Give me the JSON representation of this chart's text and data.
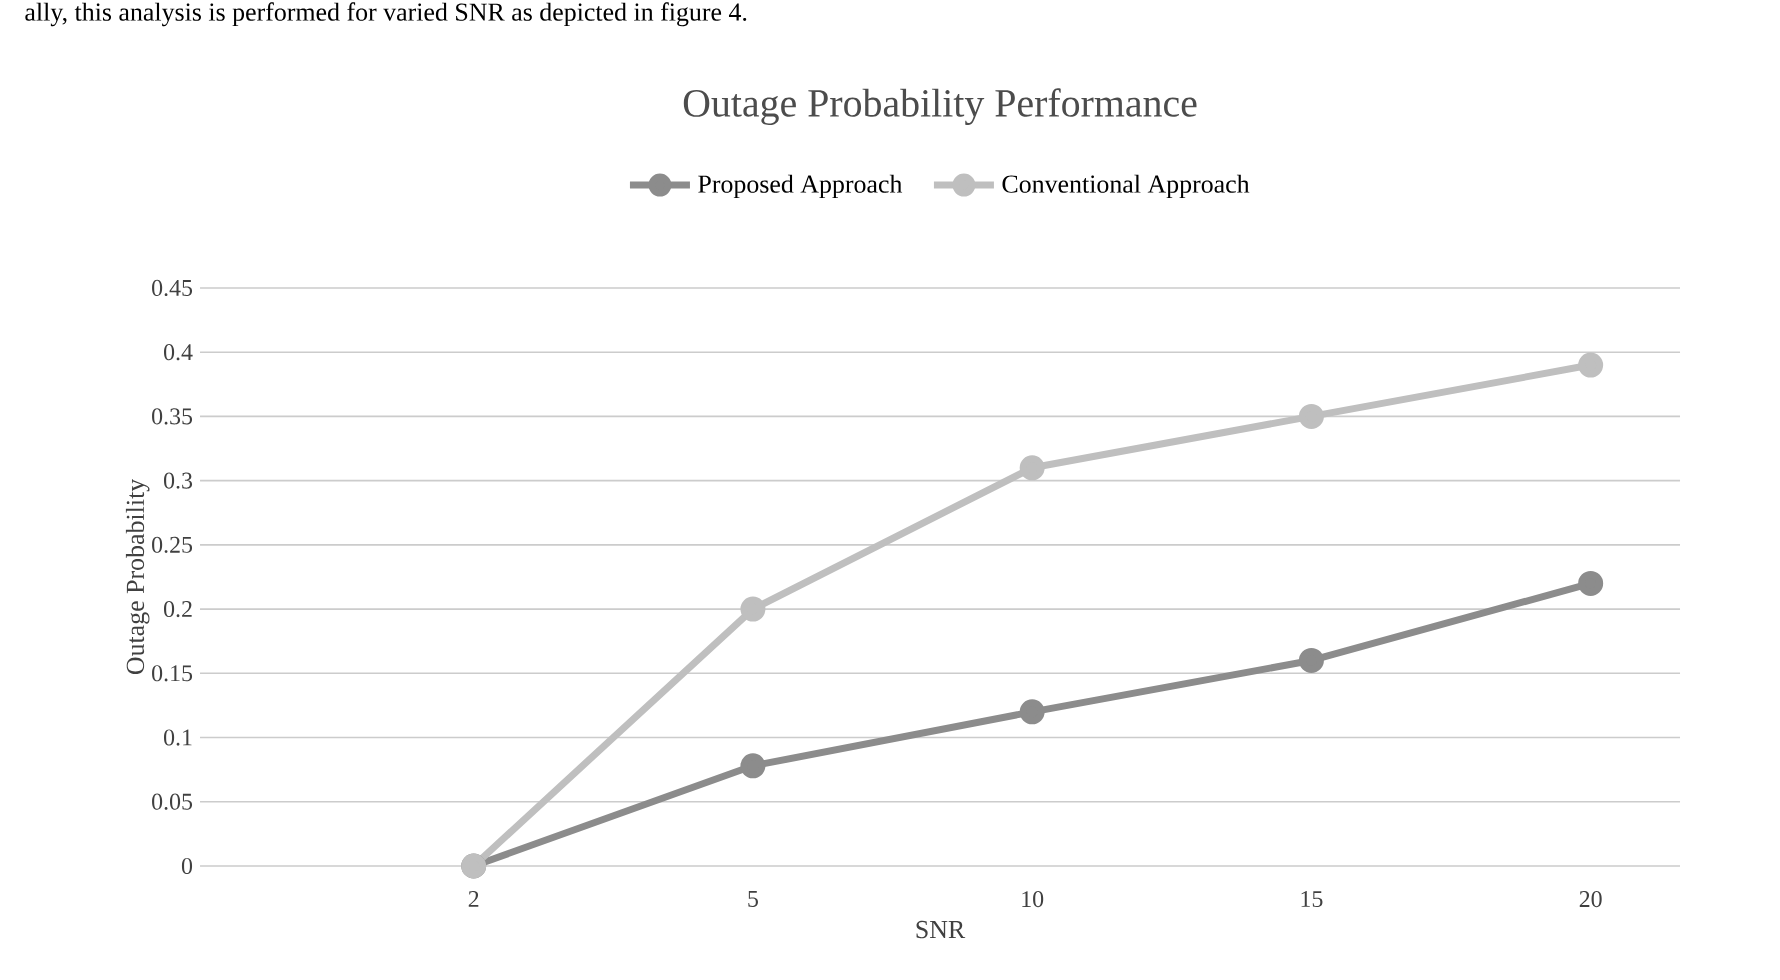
{
  "chart_data": {
    "type": "line",
    "title": "Outage  Probability Performance",
    "xlabel": "SNR",
    "ylabel": "Outage Probability",
    "categories": [
      "2",
      "5",
      "10",
      "15",
      "20"
    ],
    "series": [
      {
        "name": "Proposed Approach",
        "color": "#8c8c8c",
        "values": [
          0,
          0.078,
          0.12,
          0.16,
          0.22
        ]
      },
      {
        "name": "Conventional Approach",
        "color": "#bfbfbf",
        "values": [
          0,
          0.2,
          0.31,
          0.35,
          0.39
        ]
      }
    ],
    "ylim": [
      0,
      0.45
    ],
    "yticks": [
      0,
      0.05,
      0.1,
      0.15,
      0.2,
      0.25,
      0.3,
      0.35,
      0.4,
      0.45
    ],
    "grid": "y",
    "legend": "top",
    "marker": "circle",
    "line_style": "solid",
    "annotations": [
      "ally, this analysis is performed for varied SNR as depicted in figure 4."
    ]
  }
}
